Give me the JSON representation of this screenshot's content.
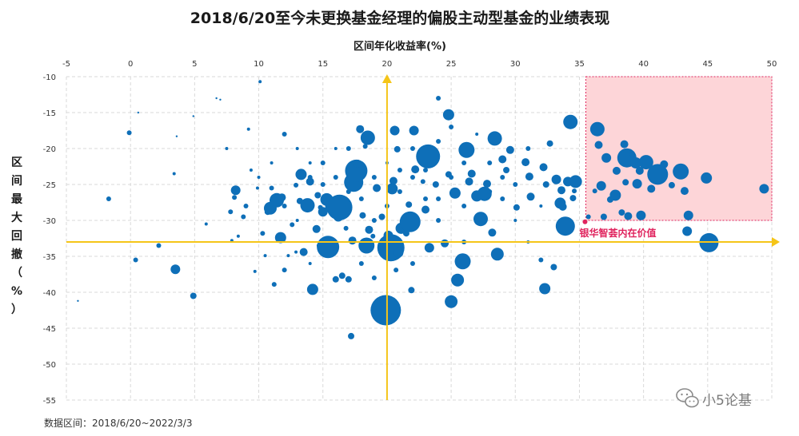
{
  "chart_data": {
    "type": "scatter",
    "title": "2018/6/20至今未更换基金经理的偏股主动型基金的业绩表现",
    "xlabel": "区间年化收益率(%)",
    "ylabel": "区间最大回撤（%）",
    "xlim": [
      -5,
      50
    ],
    "ylim": [
      -55,
      -10
    ],
    "xticks": [
      "-5",
      "0",
      "5",
      "10",
      "15",
      "20",
      "25",
      "30",
      "35",
      "40",
      "45",
      "50"
    ],
    "yticks": [
      "-10",
      "-15",
      "-20",
      "-25",
      "-30",
      "-35",
      "-40",
      "-45",
      "-50",
      "-55"
    ],
    "grid": true,
    "reference_lines": {
      "x": 20,
      "y": -33
    },
    "highlight_region": {
      "x": [
        35.5,
        50
      ],
      "y": [
        -30,
        -10
      ],
      "color": "#fdd5d8"
    },
    "annotation": {
      "text": "银华智荟内在价值",
      "x": 35.5,
      "y": -30.2,
      "color": "#e0245e"
    },
    "source_note": "数据区间：2018/6/20~2022/3/3",
    "watermark": "小5论基",
    "colors": {
      "point": "#0e6fb8",
      "axis_line": "#f5c518",
      "highlight_border": "#e0245e"
    },
    "points": [
      [
        -4.1,
        -41.2,
        1
      ],
      [
        -1.7,
        -27,
        3
      ],
      [
        -0.1,
        -17.8,
        3
      ],
      [
        0.4,
        -35.5,
        3
      ],
      [
        0.6,
        -15,
        1
      ],
      [
        2.2,
        -33.5,
        3
      ],
      [
        3.4,
        -23.5,
        2
      ],
      [
        3.5,
        -36.8,
        6
      ],
      [
        3.6,
        -18.3,
        1
      ],
      [
        4.9,
        -15.5,
        1
      ],
      [
        4.9,
        -40.5,
        4
      ],
      [
        5.9,
        -30.5,
        2
      ],
      [
        6.7,
        -13,
        1
      ],
      [
        7.0,
        -13.2,
        1
      ],
      [
        7.5,
        -20,
        2
      ],
      [
        7.8,
        -28.8,
        3
      ],
      [
        7.9,
        -32.8,
        2
      ],
      [
        8.1,
        -26.8,
        3
      ],
      [
        8.2,
        -25.8,
        6
      ],
      [
        8.4,
        -32.2,
        2
      ],
      [
        8.8,
        -29.5,
        3
      ],
      [
        9.2,
        -17.3,
        2
      ],
      [
        9.4,
        -23,
        2
      ],
      [
        9.7,
        -37.1,
        2
      ],
      [
        9.9,
        -25.5,
        2
      ],
      [
        10.1,
        -10.7,
        2
      ],
      [
        10.3,
        -31.8,
        3
      ],
      [
        10.5,
        -34.9,
        2
      ],
      [
        10.7,
        -28.8,
        4
      ],
      [
        10.9,
        -28.3,
        8
      ],
      [
        11.0,
        -25.5,
        3
      ],
      [
        11.2,
        -38.9,
        3
      ],
      [
        11.4,
        -27.2,
        9
      ],
      [
        11.7,
        -32.4,
        7
      ],
      [
        11.8,
        -26.8,
        5
      ],
      [
        12.0,
        -36.9,
        3
      ],
      [
        12.3,
        -34.9,
        2
      ],
      [
        12.6,
        -30.6,
        3
      ],
      [
        12.9,
        -34.4,
        2
      ],
      [
        12.9,
        -25.1,
        3
      ],
      [
        13.2,
        -27.3,
        4
      ],
      [
        13.3,
        -23.6,
        7
      ],
      [
        13.5,
        -34.4,
        5
      ],
      [
        13.8,
        -27.9,
        9
      ],
      [
        14.0,
        -24.6,
        5
      ],
      [
        14.2,
        -39.6,
        7
      ],
      [
        14.5,
        -31.2,
        5
      ],
      [
        14.6,
        -26.5,
        4
      ],
      [
        14.7,
        -33.5,
        3
      ],
      [
        14.8,
        -28.2,
        3
      ],
      [
        15.0,
        -28.8,
        6
      ],
      [
        15.3,
        -27.1,
        8
      ],
      [
        15.4,
        -33.7,
        14
      ],
      [
        15.8,
        -28,
        10
      ],
      [
        16.0,
        -38.2,
        4
      ],
      [
        16.2,
        -29.5,
        6
      ],
      [
        16.3,
        -28.2,
        16
      ],
      [
        16.5,
        -37.7,
        4
      ],
      [
        16.8,
        -31.1,
        3
      ],
      [
        17.0,
        -38.2,
        4
      ],
      [
        17.2,
        -46.1,
        4
      ],
      [
        17.3,
        -32.8,
        5
      ],
      [
        17.4,
        -24.7,
        12
      ],
      [
        17.6,
        -23.1,
        14
      ],
      [
        17.7,
        -22.1,
        5
      ],
      [
        17.9,
        -17.3,
        5
      ],
      [
        18.1,
        -29.3,
        4
      ],
      [
        18.3,
        -19.7,
        3
      ],
      [
        18.4,
        -33.5,
        10
      ],
      [
        18.5,
        -18.5,
        9
      ],
      [
        18.6,
        -31.3,
        5
      ],
      [
        18.9,
        -32.2,
        3
      ],
      [
        19.2,
        -25.5,
        5
      ],
      [
        19.6,
        -29.5,
        4
      ],
      [
        19.9,
        -42.5,
        19
      ],
      [
        20.1,
        -32.1,
        6
      ],
      [
        20.3,
        -33.8,
        17
      ],
      [
        20.4,
        -25.6,
        7
      ],
      [
        20.5,
        -24.5,
        5
      ],
      [
        20.6,
        -17.5,
        6
      ],
      [
        20.7,
        -36.9,
        3
      ],
      [
        20.8,
        -20.1,
        4
      ],
      [
        20.9,
        -34.5,
        6
      ],
      [
        21.1,
        -31.1,
        7
      ],
      [
        21.5,
        -31.8,
        4
      ],
      [
        21.7,
        -27.8,
        4
      ],
      [
        21.8,
        -30.2,
        13
      ],
      [
        21.9,
        -39.7,
        4
      ],
      [
        22.1,
        -17.5,
        6
      ],
      [
        22.2,
        -22.9,
        5
      ],
      [
        22.6,
        -20.9,
        4
      ],
      [
        22.8,
        -24.6,
        3
      ],
      [
        23.0,
        -28.5,
        5
      ],
      [
        23.2,
        -21.1,
        15
      ],
      [
        23.3,
        -33.8,
        6
      ],
      [
        23.8,
        -25,
        4
      ],
      [
        24.0,
        -13,
        3
      ],
      [
        24.5,
        -33.2,
        5
      ],
      [
        24.8,
        -15.3,
        7
      ],
      [
        24.8,
        -23.6,
        4
      ],
      [
        25.0,
        -41.3,
        8
      ],
      [
        25.3,
        -26.2,
        7
      ],
      [
        25.5,
        -38.3,
        8
      ],
      [
        25.9,
        -35.7,
        10
      ],
      [
        26.2,
        -20.2,
        10
      ],
      [
        26.4,
        -24.6,
        5
      ],
      [
        26.6,
        -23.5,
        5
      ],
      [
        27.0,
        -26.6,
        7
      ],
      [
        27.3,
        -29.8,
        9
      ],
      [
        27.6,
        -26.3,
        9
      ],
      [
        27.8,
        -24.9,
        5
      ],
      [
        28.2,
        -31.7,
        5
      ],
      [
        28.4,
        -18.6,
        9
      ],
      [
        28.6,
        -34.7,
        8
      ],
      [
        29.0,
        -21.5,
        5
      ],
      [
        29.3,
        -23,
        4
      ],
      [
        29.6,
        -20.2,
        5
      ],
      [
        30.1,
        -28.2,
        4
      ],
      [
        30.8,
        -21.9,
        5
      ],
      [
        31.1,
        -23.9,
        5
      ],
      [
        31.2,
        -26.7,
        5
      ],
      [
        32.0,
        -35.5,
        3
      ],
      [
        32.2,
        -22.6,
        5
      ],
      [
        32.3,
        -39.5,
        7
      ],
      [
        32.4,
        -25,
        4
      ],
      [
        32.7,
        -19.3,
        4
      ],
      [
        33.0,
        -36.5,
        4
      ],
      [
        33.2,
        -24.3,
        6
      ],
      [
        33.5,
        -27.6,
        7
      ],
      [
        33.6,
        -25.8,
        5
      ],
      [
        33.7,
        -28.1,
        5
      ],
      [
        33.9,
        -30.8,
        12
      ],
      [
        34.1,
        -24.6,
        6
      ],
      [
        34.3,
        -16.3,
        9
      ],
      [
        34.5,
        -26.9,
        4
      ],
      [
        34.6,
        -25.9,
        3
      ],
      [
        34.7,
        -24.6,
        8
      ],
      [
        35.7,
        -29.5,
        3
      ],
      [
        36.2,
        -25.9,
        3
      ],
      [
        36.4,
        -17.3,
        9
      ],
      [
        36.5,
        -19.5,
        5
      ],
      [
        36.7,
        -25.2,
        6
      ],
      [
        36.9,
        -29.5,
        4
      ],
      [
        37.1,
        -21.3,
        6
      ],
      [
        37.4,
        -27.1,
        4
      ],
      [
        37.8,
        -26.5,
        7
      ],
      [
        37.9,
        -23.1,
        5
      ],
      [
        38.3,
        -28.9,
        4
      ],
      [
        38.5,
        -19.4,
        5
      ],
      [
        38.6,
        -24.7,
        4
      ],
      [
        38.7,
        -21.3,
        12
      ],
      [
        38.8,
        -29.4,
        5
      ],
      [
        39.1,
        -20.8,
        3
      ],
      [
        39.4,
        -22,
        7
      ],
      [
        39.5,
        -24.9,
        6
      ],
      [
        39.7,
        -23.1,
        5
      ],
      [
        39.8,
        -29.3,
        6
      ],
      [
        40.2,
        -21.9,
        9
      ],
      [
        40.6,
        -25.6,
        5
      ],
      [
        41.1,
        -23.6,
        13
      ],
      [
        41.6,
        -22.2,
        5
      ],
      [
        42.2,
        -25.1,
        4
      ],
      [
        42.9,
        -23.2,
        10
      ],
      [
        43.2,
        -25.9,
        5
      ],
      [
        43.4,
        -31.5,
        6
      ],
      [
        43.5,
        -29.3,
        6
      ],
      [
        44.9,
        -24.1,
        7
      ],
      [
        45.1,
        -33.1,
        12
      ],
      [
        49.4,
        -25.6,
        6
      ],
      [
        14,
        -24,
        3
      ],
      [
        22,
        -20,
        3
      ],
      [
        26,
        -28,
        3
      ],
      [
        30,
        -25,
        3
      ],
      [
        12,
        -18,
        3
      ],
      [
        16,
        -20,
        2
      ],
      [
        19,
        -24,
        3
      ],
      [
        24,
        -19,
        3
      ],
      [
        28,
        -22,
        3
      ],
      [
        13,
        -30,
        2
      ],
      [
        18,
        -36,
        3
      ],
      [
        21,
        -23,
        3
      ],
      [
        25,
        -17,
        3
      ],
      [
        27,
        -30,
        3
      ],
      [
        31,
        -20,
        3
      ],
      [
        11,
        -22,
        2
      ],
      [
        15,
        -22,
        3
      ],
      [
        23,
        -27,
        3
      ],
      [
        29,
        -27,
        3
      ],
      [
        17,
        -26,
        3
      ],
      [
        20,
        -28,
        3
      ],
      [
        24,
        -30,
        3
      ],
      [
        26,
        -33,
        3
      ],
      [
        14,
        -36,
        2
      ],
      [
        19,
        -38,
        3
      ],
      [
        22,
        -36,
        3
      ],
      [
        16,
        -34,
        3
      ],
      [
        13,
        -20,
        2
      ],
      [
        27,
        -18,
        2
      ],
      [
        30,
        -30,
        2
      ],
      [
        32,
        -28,
        2
      ],
      [
        9,
        -28,
        3
      ],
      [
        12,
        -28,
        3
      ],
      [
        18,
        -27,
        3
      ],
      [
        25,
        -24,
        3
      ],
      [
        28,
        -26,
        3
      ],
      [
        21,
        -26,
        3
      ],
      [
        15,
        -25,
        3
      ],
      [
        17,
        -20,
        3
      ],
      [
        23,
        -23,
        3
      ],
      [
        19,
        -30,
        3
      ],
      [
        10,
        -24,
        2
      ],
      [
        29,
        -24,
        3
      ],
      [
        31,
        -33,
        2
      ],
      [
        26,
        -22,
        3
      ],
      [
        22,
        -24,
        3
      ],
      [
        20,
        -22,
        2
      ],
      [
        24,
        -27,
        3
      ],
      [
        16,
        -24,
        3
      ],
      [
        14,
        -22,
        2
      ]
    ]
  }
}
